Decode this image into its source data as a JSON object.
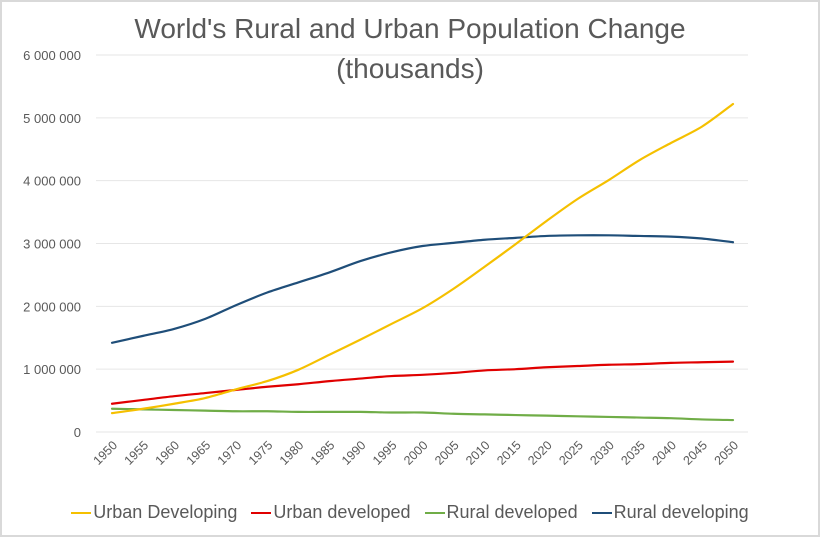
{
  "chart_data": {
    "type": "line",
    "title": "World's Rural and Urban Population Change",
    "subtitle": "(thousands)",
    "xlabel": "",
    "ylabel": "",
    "ylim": [
      0,
      6000000
    ],
    "grid": true,
    "legend_position": "bottom",
    "y_ticks": [
      {
        "value": 0,
        "label": "0"
      },
      {
        "value": 1000000,
        "label": "1 000 000"
      },
      {
        "value": 2000000,
        "label": "2 000 000"
      },
      {
        "value": 3000000,
        "label": "3 000 000"
      },
      {
        "value": 4000000,
        "label": "4 000 000"
      },
      {
        "value": 5000000,
        "label": "5 000 000"
      },
      {
        "value": 6000000,
        "label": "6 000 000"
      }
    ],
    "categories": [
      "1950",
      "1955",
      "1960",
      "1965",
      "1970",
      "1975",
      "1980",
      "1985",
      "1990",
      "1995",
      "2000",
      "2005",
      "2010",
      "2015",
      "2020",
      "2025",
      "2030",
      "2035",
      "2040",
      "2045",
      "2050"
    ],
    "series": [
      {
        "name": "Urban Developing",
        "color": "#f5c000",
        "values": [
          300000,
          370000,
          450000,
          540000,
          680000,
          810000,
          990000,
          1230000,
          1470000,
          1720000,
          1970000,
          2280000,
          2630000,
          2990000,
          3360000,
          3710000,
          4010000,
          4330000,
          4600000,
          4860000,
          5220000
        ]
      },
      {
        "name": "Urban developed",
        "color": "#e00000",
        "values": [
          450000,
          510000,
          570000,
          620000,
          670000,
          720000,
          760000,
          810000,
          850000,
          890000,
          910000,
          940000,
          980000,
          1000000,
          1030000,
          1050000,
          1070000,
          1080000,
          1100000,
          1110000,
          1120000
        ]
      },
      {
        "name": "Rural developed",
        "color": "#70ad47",
        "values": [
          370000,
          360000,
          350000,
          340000,
          330000,
          330000,
          320000,
          320000,
          320000,
          310000,
          310000,
          290000,
          280000,
          270000,
          260000,
          250000,
          240000,
          230000,
          220000,
          200000,
          190000
        ]
      },
      {
        "name": "Rural developing",
        "color": "#1f4e79",
        "values": [
          1420000,
          1530000,
          1640000,
          1800000,
          2020000,
          2220000,
          2380000,
          2540000,
          2720000,
          2860000,
          2960000,
          3010000,
          3060000,
          3090000,
          3120000,
          3130000,
          3130000,
          3120000,
          3110000,
          3080000,
          3020000
        ]
      }
    ]
  },
  "colors": {
    "gridline": "#e6e6e6",
    "text": "#595959"
  }
}
